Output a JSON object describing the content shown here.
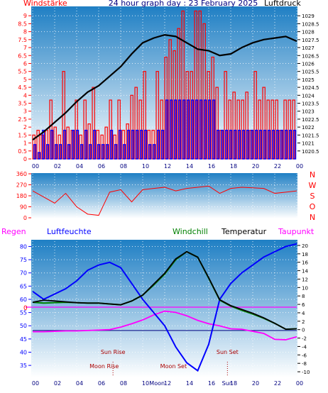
{
  "colors": {
    "red": "#ff0000",
    "blue": "#0000ff",
    "navy": "#000080",
    "black": "#000000",
    "magenta": "#ff00ff",
    "green": "#008000",
    "darkred": "#aa0000",
    "sky_top": "#1f7fc4",
    "sky_bottom": "#ffffff"
  },
  "hour_labels": [
    "00",
    "02",
    "04",
    "06",
    "08",
    "10",
    "12",
    "14",
    "16",
    "18",
    "20",
    "22",
    "00"
  ],
  "chart_data": [
    {
      "id": "wind-pressure",
      "type": "bar",
      "title": "24 hour graph day : 23 February 2025",
      "left_label": "Windstärke",
      "right_label": "Luftdruck",
      "left_ticks": [
        "0",
        "0.5",
        "1",
        "1.5",
        "2",
        "2.5",
        "3",
        "3.5",
        "4",
        "4.5",
        "5",
        "5.5",
        "6",
        "6.5",
        "7",
        "7.5",
        "8",
        "8.5",
        "9"
      ],
      "right_ticks": [
        "1020.5",
        "1021",
        "1021.5",
        "1022",
        "1022.5",
        "1023",
        "1023.5",
        "1024",
        "1024.5",
        "1025",
        "1025.5",
        "1026",
        "1026.5",
        "1027",
        "1027.5",
        "1028",
        "1028.5",
        "1029"
      ],
      "ylim_left": [
        0,
        9.5
      ],
      "ylim_right": [
        1020,
        1029.5
      ],
      "series": [
        {
          "name": "Windstärke (gust)",
          "color": "#ff0000",
          "values": [
            1.5,
            1.8,
            1.5,
            1.8,
            3.7,
            2,
            1.5,
            5.5,
            2,
            1.8,
            3.7,
            1.5,
            3.7,
            2.2,
            4.5,
            1.8,
            1.5,
            2,
            3.7,
            1.5,
            3.7,
            1.8,
            2.2,
            4,
            4.5,
            3.7,
            5.5,
            1.8,
            1.8,
            5.5,
            3.7,
            6.4,
            7.5,
            6.8,
            8.2,
            9.3,
            5.5,
            5.5,
            9.3,
            9.3,
            8.5,
            5.5,
            6.4,
            4.5,
            1.8,
            5.5,
            3.7,
            4.2,
            3.7,
            3.7,
            4.2,
            1.8,
            5.5,
            3.7,
            4.5,
            3.7,
            3.7,
            3.7,
            1.8,
            3.7,
            3.7,
            3.7
          ]
        },
        {
          "name": "Windstärke (avg)",
          "color": "#0000ff",
          "values": [
            0.9,
            0.4,
            1.8,
            0.9,
            1.8,
            0.9,
            0.9,
            1.8,
            0.9,
            1.8,
            1.8,
            0.9,
            1.8,
            0.9,
            1.8,
            0.9,
            0.9,
            0.9,
            1.8,
            0.9,
            1.8,
            0.9,
            1.8,
            1.8,
            1.8,
            1.8,
            1.8,
            0.9,
            0.9,
            1.8,
            1.8,
            3.7,
            3.7,
            3.7,
            3.7,
            3.7,
            3.7,
            3.7,
            3.7,
            3.7,
            3.7,
            3.7,
            3.7,
            1.8,
            1.8,
            1.8,
            1.8,
            1.8,
            1.8,
            1.8,
            1.8,
            1.8,
            1.8,
            1.8,
            1.8,
            1.8,
            1.8,
            1.8,
            1.8,
            1.8,
            1.8,
            1.8
          ]
        },
        {
          "name": "Luftdruck",
          "color": "#000000",
          "x": [
            0,
            1,
            2,
            3,
            4,
            5,
            6,
            7,
            8,
            9,
            10,
            11,
            12,
            13,
            14,
            15,
            16,
            17,
            18,
            19,
            20,
            21,
            22,
            23,
            24
          ],
          "values": [
            1021.2,
            1021.7,
            1022.3,
            1022.9,
            1023.6,
            1024.2,
            1024.6,
            1025.2,
            1025.8,
            1026.6,
            1027.3,
            1027.6,
            1027.8,
            1027.7,
            1027.3,
            1026.9,
            1026.8,
            1026.5,
            1026.6,
            1027.0,
            1027.3,
            1027.5,
            1027.6,
            1027.7,
            1027.4
          ]
        }
      ]
    },
    {
      "id": "wind-direction",
      "type": "line",
      "left_ticks": [
        "0",
        "90",
        "180",
        "270",
        "360"
      ],
      "right_labels": [
        "N",
        "W",
        "S",
        "O",
        "N"
      ],
      "ylim": [
        0,
        360
      ],
      "series": [
        {
          "name": "Windrichtung",
          "color": "#ff0000",
          "x": [
            0,
            1,
            2,
            3,
            4,
            5,
            6,
            7,
            8,
            9,
            10,
            11,
            12,
            13,
            14,
            15,
            16,
            17,
            18,
            19,
            20,
            21,
            22,
            23,
            24
          ],
          "values": [
            220,
            170,
            120,
            200,
            90,
            30,
            20,
            210,
            230,
            130,
            230,
            240,
            250,
            220,
            240,
            250,
            260,
            200,
            240,
            250,
            245,
            240,
            200,
            210,
            220
          ]
        }
      ]
    },
    {
      "id": "temp-humidity",
      "type": "line",
      "labels": {
        "rain": "Regen",
        "humidity": "Luftfeuchte",
        "windchill": "Windchill",
        "temperature": "Temperatur",
        "dewpoint": "Taupunkt"
      },
      "left_ticks": [
        "35",
        "40",
        "45",
        "50",
        "55",
        "60",
        "65",
        "70",
        "75",
        "80"
      ],
      "right_ticks": [
        "-10",
        "-8",
        "-6",
        "-4",
        "-2",
        "0",
        "2",
        "4",
        "6",
        "8",
        "10",
        "12",
        "14",
        "16",
        "18",
        "20"
      ],
      "rain_zero_label": "0",
      "ylim_left": [
        31,
        82
      ],
      "ylim_right": [
        -11,
        21
      ],
      "series": [
        {
          "name": "Luftfeuchte",
          "color": "#0000ff",
          "x": [
            0,
            1,
            2,
            3,
            4,
            5,
            6,
            7,
            8,
            9,
            10,
            11,
            12,
            13,
            14,
            15,
            16,
            17,
            18,
            19,
            20,
            21,
            22,
            23,
            24
          ],
          "values": [
            63,
            60,
            62,
            64,
            67,
            71,
            73,
            74,
            72,
            66,
            60,
            55,
            50,
            42,
            36,
            33,
            43,
            60,
            66,
            70,
            73,
            76,
            78,
            80,
            81
          ]
        },
        {
          "name": "Temperatur",
          "color": "#000000",
          "x": [
            0,
            1,
            2,
            3,
            4,
            5,
            6,
            7,
            8,
            9,
            10,
            11,
            12,
            13,
            14,
            15,
            16,
            17,
            18,
            19,
            20,
            21,
            22,
            23,
            24
          ],
          "values": [
            6.5,
            7,
            6.8,
            6.6,
            6.4,
            6.3,
            6.3,
            6.1,
            5.9,
            6.8,
            8.2,
            10.8,
            13.4,
            16.8,
            18.5,
            17.2,
            12.3,
            7.1,
            5.7,
            4.8,
            3.9,
            2.8,
            1.5,
            0.1,
            0.2
          ]
        },
        {
          "name": "Windchill",
          "color": "#008000",
          "x": [
            0,
            1,
            2,
            3,
            4,
            5,
            6,
            7,
            8,
            9,
            10,
            11,
            12,
            13,
            14,
            15,
            16,
            17,
            18,
            19,
            20,
            21,
            22,
            23,
            24
          ],
          "values": [
            6.5,
            6.3,
            6.4,
            6.5,
            6.4,
            6.3,
            6.3,
            6.1,
            5.9,
            6.8,
            8.2,
            10.6,
            13.2,
            16.6,
            18.5,
            17.2,
            12.2,
            7.0,
            5.6,
            4.6,
            3.7,
            2.7,
            1.5,
            0.1,
            0.2
          ]
        },
        {
          "name": "Taupunkt",
          "color": "#ff00ff",
          "x": [
            0,
            1,
            2,
            3,
            4,
            5,
            6,
            7,
            8,
            9,
            10,
            11,
            12,
            13,
            14,
            15,
            16,
            17,
            18,
            19,
            20,
            21,
            22,
            23,
            24
          ],
          "values": [
            -0.5,
            -0.5,
            -0.4,
            -0.3,
            -0.3,
            -0.2,
            -0.1,
            0,
            0.6,
            1.4,
            2.3,
            3.5,
            4.4,
            4.1,
            3.3,
            2.2,
            1.4,
            0.9,
            0.2,
            0.1,
            -0.4,
            -0.9,
            -2.3,
            -2.4,
            -1.7
          ]
        }
      ],
      "annotations": [
        {
          "text": "Sun Rise",
          "x": 7.3,
          "row": 1
        },
        {
          "text": "Moon Rise",
          "x": 6.5,
          "row": 2
        },
        {
          "text": "Moon Set",
          "x": 12.8,
          "row": 2
        },
        {
          "text": "Sun Set",
          "x": 17.7,
          "row": 1
        }
      ],
      "bottom_overlap_labels": [
        "Moon",
        "Sun"
      ]
    }
  ]
}
